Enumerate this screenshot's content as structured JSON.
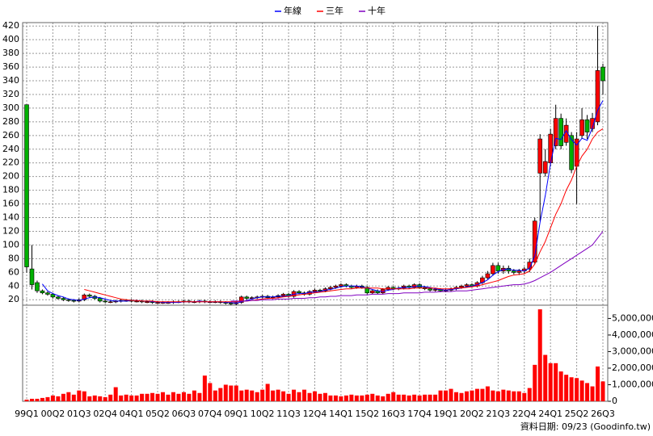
{
  "chart_data": {
    "type": "candlestick",
    "categories": [
      "99Q1",
      null,
      null,
      null,
      null,
      "00Q2",
      null,
      null,
      null,
      null,
      "01Q3",
      null,
      null,
      null,
      null,
      "02Q4",
      null,
      null,
      null,
      null,
      "04Q1",
      null,
      null,
      null,
      null,
      "05Q2",
      null,
      null,
      null,
      null,
      "06Q3",
      null,
      null,
      null,
      null,
      "07Q4",
      null,
      null,
      null,
      null,
      "09Q1",
      null,
      null,
      null,
      null,
      "10Q2",
      null,
      null,
      null,
      null,
      "11Q3",
      null,
      null,
      null,
      null,
      "12Q4",
      null,
      null,
      null,
      null,
      "14Q1",
      null,
      null,
      null,
      null,
      "15Q2",
      null,
      null,
      null,
      null,
      "16Q3",
      null,
      null,
      null,
      null,
      "17Q4",
      null,
      null,
      null,
      null,
      "19Q1",
      null,
      null,
      null,
      null,
      "20Q2",
      null,
      null,
      null,
      null,
      "21Q3",
      null,
      null,
      null,
      null,
      "22Q4",
      null,
      null,
      null,
      null,
      "24Q1",
      null,
      null,
      null,
      null,
      "25Q2",
      null,
      null,
      null,
      null,
      "26Q3"
    ],
    "open": [
      305,
      65,
      45,
      33,
      30,
      28,
      24,
      22,
      20,
      19,
      18,
      20,
      27,
      25,
      22,
      18,
      17,
      17,
      18,
      19,
      19,
      18,
      18,
      17,
      17,
      16,
      16,
      16,
      16,
      17,
      17,
      18,
      17,
      17,
      18,
      17,
      17,
      17,
      16,
      15,
      14,
      16,
      24,
      22,
      23,
      24,
      25,
      23,
      24,
      26,
      28,
      25,
      32,
      30,
      28,
      32,
      34,
      33,
      36,
      38,
      40,
      42,
      40,
      38,
      40,
      38,
      30,
      33,
      30,
      35,
      38,
      36,
      37,
      40,
      38,
      42,
      38,
      36,
      34,
      35,
      33,
      34,
      36,
      38,
      40,
      42,
      40,
      45,
      52,
      58,
      70,
      62,
      66,
      62,
      60,
      62,
      65,
      75,
      205,
      205,
      220,
      245,
      285,
      250,
      260,
      215,
      260,
      283,
      270,
      280,
      360
    ],
    "high": [
      305,
      100,
      48,
      35,
      32,
      30,
      26,
      24,
      22,
      21,
      22,
      29,
      29,
      27,
      24,
      20,
      19,
      20,
      21,
      21,
      21,
      20,
      20,
      19,
      19,
      18,
      18,
      18,
      19,
      19,
      20,
      20,
      19,
      20,
      20,
      19,
      19,
      19,
      18,
      17,
      18,
      26,
      26,
      25,
      26,
      27,
      27,
      26,
      28,
      30,
      30,
      34,
      34,
      32,
      34,
      36,
      36,
      38,
      40,
      42,
      44,
      44,
      42,
      42,
      42,
      40,
      35,
      35,
      37,
      40,
      40,
      39,
      42,
      42,
      44,
      44,
      40,
      38,
      37,
      37,
      36,
      38,
      40,
      42,
      44,
      44,
      47,
      55,
      62,
      74,
      74,
      70,
      70,
      65,
      65,
      68,
      80,
      140,
      262,
      240,
      270,
      305,
      292,
      285,
      265,
      265,
      300,
      290,
      293,
      420,
      365
    ],
    "low": [
      60,
      35,
      30,
      28,
      26,
      22,
      20,
      18,
      17,
      16,
      16,
      18,
      23,
      20,
      16,
      15,
      15,
      15,
      16,
      17,
      16,
      16,
      15,
      15,
      14,
      14,
      14,
      14,
      14,
      15,
      15,
      15,
      15,
      15,
      15,
      15,
      15,
      14,
      13,
      12,
      12,
      14,
      20,
      20,
      21,
      22,
      21,
      21,
      22,
      24,
      23,
      23,
      28,
      26,
      26,
      30,
      31,
      31,
      34,
      36,
      38,
      38,
      36,
      36,
      36,
      28,
      28,
      28,
      28,
      33,
      34,
      34,
      35,
      36,
      36,
      36,
      34,
      32,
      32,
      31,
      31,
      32,
      34,
      36,
      38,
      38,
      38,
      43,
      50,
      55,
      58,
      58,
      58,
      57,
      56,
      58,
      60,
      72,
      135,
      200,
      215,
      240,
      240,
      245,
      205,
      160,
      255,
      255,
      265,
      275,
      320
    ],
    "close": [
      68,
      42,
      33,
      30,
      28,
      24,
      22,
      20,
      19,
      18,
      20,
      27,
      25,
      22,
      18,
      17,
      17,
      18,
      19,
      19,
      18,
      18,
      17,
      17,
      16,
      16,
      16,
      16,
      17,
      17,
      18,
      17,
      17,
      18,
      17,
      17,
      17,
      16,
      15,
      14,
      16,
      24,
      22,
      23,
      24,
      25,
      23,
      24,
      26,
      28,
      25,
      32,
      30,
      28,
      32,
      34,
      33,
      36,
      38,
      40,
      42,
      40,
      38,
      40,
      38,
      30,
      33,
      30,
      35,
      38,
      36,
      37,
      40,
      38,
      42,
      38,
      36,
      34,
      35,
      33,
      34,
      36,
      38,
      40,
      42,
      40,
      45,
      52,
      58,
      70,
      62,
      66,
      62,
      60,
      62,
      65,
      75,
      135,
      255,
      222,
      262,
      285,
      245,
      275,
      210,
      255,
      283,
      265,
      285,
      355,
      340
    ],
    "up_color": "#ff0000",
    "down_color": "#00b000",
    "series": [
      {
        "name": "年線",
        "color": "#0000ff",
        "values": [
          null,
          null,
          null,
          43,
          33,
          29,
          26,
          24,
          21,
          20,
          19,
          21,
          23,
          24,
          23,
          21,
          19,
          18,
          18,
          18,
          19,
          19,
          18,
          18,
          17,
          17,
          16,
          16,
          16,
          16,
          17,
          17,
          17,
          18,
          17,
          17,
          17,
          17,
          16,
          16,
          15,
          17,
          19,
          21,
          23,
          24,
          24,
          24,
          25,
          25,
          26,
          28,
          29,
          29,
          31,
          31,
          32,
          34,
          35,
          37,
          39,
          40,
          40,
          40,
          39,
          37,
          35,
          33,
          32,
          34,
          35,
          37,
          38,
          38,
          39,
          40,
          39,
          38,
          36,
          35,
          34,
          35,
          36,
          37,
          39,
          40,
          42,
          45,
          49,
          56,
          61,
          64,
          65,
          63,
          63,
          62,
          66,
          84,
          133,
          172,
          219,
          256,
          254,
          267,
          254,
          246,
          256,
          253,
          271,
          297,
          311
        ]
      },
      {
        "name": "三年",
        "color": "#ff0000",
        "values": [
          null,
          null,
          null,
          null,
          null,
          null,
          null,
          null,
          null,
          null,
          null,
          35,
          33,
          31,
          29,
          27,
          25,
          23,
          21,
          20,
          19,
          19,
          18,
          18,
          18,
          17,
          17,
          17,
          17,
          17,
          17,
          17,
          17,
          17,
          17,
          17,
          17,
          17,
          17,
          17,
          17,
          18,
          18,
          19,
          20,
          21,
          22,
          22,
          23,
          24,
          25,
          26,
          27,
          28,
          29,
          30,
          31,
          32,
          33,
          34,
          35,
          36,
          36,
          37,
          37,
          37,
          37,
          37,
          36,
          36,
          36,
          36,
          36,
          36,
          37,
          37,
          37,
          37,
          37,
          36,
          36,
          36,
          37,
          37,
          38,
          39,
          40,
          42,
          44,
          46,
          48,
          51,
          54,
          56,
          57,
          58,
          62,
          72,
          90,
          105,
          125,
          145,
          160,
          180,
          195,
          215,
          230,
          240,
          255,
          265,
          270
        ]
      },
      {
        "name": "十年",
        "color": "#8000c0",
        "values": [
          null,
          null,
          null,
          null,
          null,
          null,
          null,
          null,
          null,
          null,
          null,
          null,
          null,
          null,
          null,
          null,
          null,
          null,
          null,
          null,
          null,
          null,
          null,
          null,
          null,
          null,
          null,
          null,
          null,
          null,
          null,
          null,
          null,
          null,
          null,
          null,
          null,
          null,
          null,
          18,
          18,
          18,
          18,
          19,
          19,
          20,
          20,
          20,
          21,
          21,
          21,
          22,
          22,
          22,
          23,
          23,
          24,
          24,
          25,
          25,
          26,
          26,
          26,
          27,
          27,
          27,
          28,
          28,
          28,
          29,
          29,
          29,
          30,
          30,
          30,
          30,
          31,
          31,
          31,
          32,
          32,
          32,
          33,
          33,
          33,
          34,
          35,
          36,
          37,
          38,
          39,
          40,
          41,
          42,
          42,
          43,
          45,
          48,
          52,
          56,
          60,
          65,
          70,
          75,
          80,
          85,
          90,
          95,
          100,
          110,
          120
        ]
      }
    ],
    "ylim": [
      12,
      425
    ],
    "yticks": [
      20,
      40,
      60,
      80,
      100,
      120,
      140,
      160,
      180,
      200,
      220,
      240,
      260,
      280,
      300,
      320,
      340,
      360,
      380,
      400,
      420
    ],
    "grid": true,
    "volume": {
      "color": "#ff0000",
      "ylim": [
        0,
        5800000
      ],
      "yticks": [
        0,
        {
          "value": 1000000,
          "label": "1,000,000"
        },
        {
          "value": 2000000,
          "label": "2,000,000"
        },
        {
          "value": 3000000,
          "label": "3,000,000"
        },
        {
          "value": 4000000,
          "label": "4,000,000"
        },
        {
          "value": 5000000,
          "label": "5,000,000"
        }
      ],
      "values": [
        100000,
        150000,
        150000,
        200000,
        250000,
        350000,
        300000,
        450000,
        550000,
        400000,
        650000,
        600000,
        300000,
        350000,
        300000,
        250000,
        400000,
        850000,
        350000,
        400000,
        350000,
        350000,
        450000,
        450000,
        500000,
        450000,
        550000,
        400000,
        550000,
        450000,
        550000,
        450000,
        650000,
        500000,
        1550000,
        1100000,
        650000,
        800000,
        1000000,
        950000,
        950000,
        650000,
        700000,
        650000,
        550000,
        700000,
        1050000,
        650000,
        700000,
        600000,
        450000,
        700000,
        550000,
        700000,
        500000,
        600000,
        450000,
        500000,
        350000,
        350000,
        300000,
        350000,
        400000,
        350000,
        350000,
        400000,
        450000,
        350000,
        300000,
        450000,
        550000,
        400000,
        400000,
        350000,
        400000,
        350000,
        400000,
        400000,
        400000,
        650000,
        650000,
        750000,
        550000,
        500000,
        600000,
        650000,
        750000,
        750000,
        900000,
        650000,
        600000,
        700000,
        650000,
        600000,
        600000,
        500000,
        800000,
        2200000,
        5550000,
        2800000,
        2300000,
        2300000,
        1800000,
        1600000,
        1450000,
        1400000,
        1250000,
        1100000,
        900000,
        2100000,
        1200000
      ]
    },
    "footnote": "資料日期: 09/23 (Goodinfo.tw)"
  }
}
